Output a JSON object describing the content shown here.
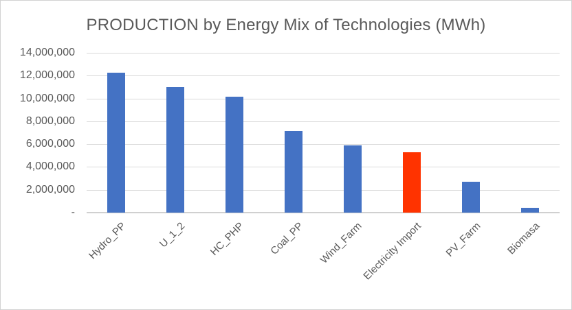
{
  "chart_data": {
    "type": "bar",
    "title": "PRODUCTION by Energy Mix of Technologies (MWh)",
    "categories": [
      "Hydro_PP",
      "U_1_2",
      "HC_PHP",
      "Coal_PP",
      "Wind_Farm",
      "Electricity Import",
      "PV_Farm",
      "Biomasa"
    ],
    "values": [
      12250000,
      11000000,
      10150000,
      7150000,
      5900000,
      5300000,
      2700000,
      400000
    ],
    "bar_colors": [
      "#4472C4",
      "#4472C4",
      "#4472C4",
      "#4472C4",
      "#4472C4",
      "#FF3300",
      "#4472C4",
      "#4472C4"
    ],
    "highlight_index": 5,
    "xlabel": "",
    "ylabel": "",
    "ylim": [
      0,
      14000000
    ],
    "ytick_step": 2000000,
    "yticks": [
      "14,000,000",
      "12,000,000",
      "10,000,000",
      "8,000,000",
      "6,000,000",
      "4,000,000",
      "2,000,000",
      "-"
    ],
    "grid": true,
    "legend": false,
    "x_label_rotation_deg": 45
  },
  "colors": {
    "bar_default": "#4472C4",
    "bar_highlight": "#FF3300",
    "text": "#595959",
    "gridline": "#D9D9D9",
    "axis_line": "#D0D0D0",
    "border": "#D2D2D2",
    "background": "#FFFFFF"
  }
}
